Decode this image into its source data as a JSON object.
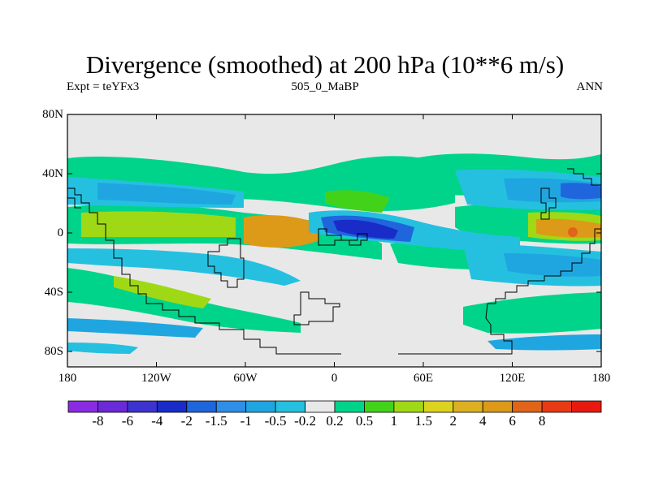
{
  "title": "Divergence (smoothed) at 200 hPa (10**6 m/s)",
  "subtitle_left": "Expt = teYFx3",
  "subtitle_center": "505_0_MaBP",
  "subtitle_right": "ANN",
  "lat_labels": [
    "80N",
    "40N",
    "0",
    "40S",
    "80S"
  ],
  "lon_labels": [
    "180",
    "120W",
    "60W",
    "0",
    "60E",
    "120E",
    "180"
  ],
  "colorbar": {
    "colors": [
      "#8a2be2",
      "#6a2ad8",
      "#3d33d0",
      "#1a2cc8",
      "#1f66dd",
      "#2f8ee6",
      "#1fa6e0",
      "#25c0e0",
      "#e8e8e8",
      "#00d48a",
      "#43d21a",
      "#9fd915",
      "#dcd31f",
      "#ddb022",
      "#dd9a18",
      "#e0641a",
      "#e83a14",
      "#e81a10"
    ],
    "labels": [
      "-8",
      "-6",
      "-4",
      "-2",
      "-1.5",
      "-1",
      "-0.5",
      "-0.2",
      "0.2",
      "0.5",
      "1",
      "1.5",
      "2",
      "4",
      "6",
      "8"
    ]
  },
  "colors": {
    "background": "#e8e8e8",
    "frame": "#000000"
  }
}
